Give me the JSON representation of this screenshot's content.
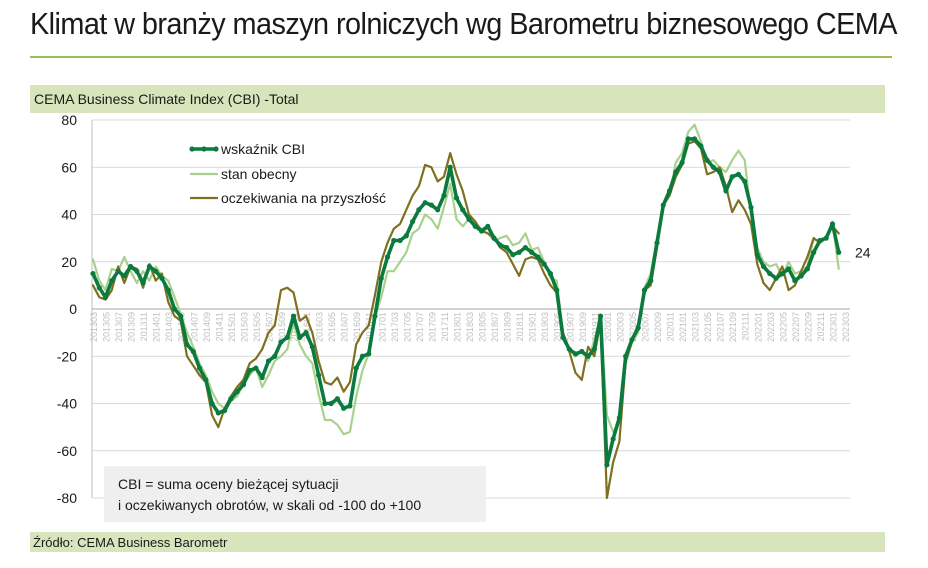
{
  "title": "Klimat w branży maszyn rolniczych wg Barometru biznesowego CEMA",
  "source": "Źródło: CEMA Business Barometr",
  "note": {
    "line1": "CBI = suma oceny bieżącej sytuacji",
    "line2": "i oczekiwanych obrotów, w skali od -100 do +100"
  },
  "colors": {
    "band": "#d8e4bc",
    "rule": "#9bbb59",
    "cbi": "#0b7a3e",
    "stan": "#a9d18e",
    "ocz": "#7f7020"
  },
  "chart_data": {
    "type": "line",
    "title": "CEMA Business Climate Index (CBI) -Total",
    "ylim": [
      -80,
      80
    ],
    "yticks": [
      80,
      60,
      40,
      20,
      0,
      -20,
      -40,
      -60,
      -80
    ],
    "grid": true,
    "legend_position": "top-left",
    "end_label": "24",
    "x": [
      "201303",
      "201304",
      "201305",
      "201306",
      "201307",
      "201308",
      "201309",
      "201310",
      "201311",
      "201312",
      "201401",
      "201402",
      "201403",
      "201404",
      "201405",
      "201406",
      "201407",
      "201408",
      "201409",
      "201410",
      "201411",
      "201412",
      "201501",
      "201502",
      "201503",
      "201504",
      "201505",
      "201506",
      "201507",
      "201508",
      "201509",
      "201510",
      "201511",
      "201512",
      "201601",
      "201602",
      "201603",
      "201604",
      "201605",
      "201606",
      "201607",
      "201608",
      "201609",
      "201610",
      "201611",
      "201612",
      "201701",
      "201702",
      "201703",
      "201704",
      "201705",
      "201706",
      "201707",
      "201708",
      "201709",
      "201710",
      "201711",
      "201712",
      "201801",
      "201802",
      "201803",
      "201804",
      "201805",
      "201806",
      "201807",
      "201808",
      "201809",
      "201810",
      "201811",
      "201812",
      "201901",
      "201902",
      "201903",
      "201904",
      "201905",
      "201906",
      "201907",
      "201908",
      "201909",
      "201910",
      "201911",
      "201912",
      "202001",
      "202002",
      "202003",
      "202004",
      "202005",
      "202006",
      "202007",
      "202008",
      "202009",
      "202010",
      "202011",
      "202012",
      "202101",
      "202102",
      "202103",
      "202104",
      "202105",
      "202106",
      "202107",
      "202108",
      "202109",
      "202110",
      "202111",
      "202112",
      "202201",
      "202202",
      "202203",
      "202204",
      "202205",
      "202206",
      "202207",
      "202208",
      "202209",
      "202210",
      "202211",
      "202212",
      "202301",
      "202302",
      "202303"
    ],
    "xtick_labels": [
      "201303",
      "201305",
      "201307",
      "201309",
      "201311",
      "201401",
      "201403",
      "201405",
      "201407",
      "201409",
      "201411",
      "201501",
      "201503",
      "201505",
      "201507",
      "201509",
      "201511",
      "201601",
      "201603",
      "201605",
      "201607",
      "201609",
      "201611",
      "201701",
      "201703",
      "201705",
      "201707",
      "201709",
      "201711",
      "201801",
      "201803",
      "201805",
      "201807",
      "201809",
      "201811",
      "201901",
      "201903",
      "201905",
      "201907",
      "201909",
      "201911",
      "202001",
      "202003",
      "202005",
      "202007",
      "202009",
      "202011",
      "202101",
      "202103",
      "202105",
      "202107",
      "202109",
      "202111",
      "202201",
      "202203",
      "202205",
      "202207",
      "202209",
      "202211",
      "202301",
      "202303"
    ],
    "series": [
      {
        "name": "wskaźnik CBI",
        "key": "cbi",
        "marker": true,
        "values": [
          15,
          9,
          5,
          12,
          16,
          14,
          18,
          16,
          11,
          18,
          16,
          13,
          8,
          0,
          -3,
          -15,
          -18,
          -25,
          -30,
          -40,
          -44,
          -43,
          -38,
          -35,
          -32,
          -26,
          -25,
          -29,
          -22,
          -20,
          -14,
          -12,
          -3,
          -12,
          -10,
          -16,
          -28,
          -40,
          -40,
          -38,
          -42,
          -41,
          -25,
          -20,
          -19,
          -3,
          13,
          22,
          29,
          29,
          31,
          37,
          42,
          45,
          44,
          42,
          48,
          60,
          47,
          42,
          38,
          35,
          33,
          35,
          30,
          27,
          26,
          23,
          24,
          26,
          24,
          22,
          19,
          15,
          8,
          -12,
          -17,
          -19,
          -18,
          -20,
          -17,
          -3,
          -66,
          -55,
          -46,
          -20,
          -13,
          -8,
          8,
          12,
          28,
          44,
          50,
          58,
          62,
          72,
          72,
          69,
          63,
          60,
          58,
          50,
          56,
          57,
          54,
          43,
          23,
          18,
          15,
          13,
          15,
          17,
          12,
          14,
          17,
          24,
          29,
          30,
          36,
          24,
          null
        ]
      },
      {
        "name": "stan obecny",
        "key": "stan",
        "marker": false,
        "values": [
          21,
          12,
          8,
          17,
          16,
          22,
          16,
          11,
          16,
          12,
          18,
          14,
          12,
          5,
          -2,
          -10,
          -16,
          -23,
          -28,
          -35,
          -40,
          -42,
          -39,
          -37,
          -32,
          -28,
          -25,
          -33,
          -28,
          -22,
          -20,
          -17,
          -6,
          -15,
          -20,
          -23,
          -36,
          -47,
          -47,
          -49,
          -53,
          -52,
          -37,
          -26,
          -19,
          -3,
          5,
          16,
          16,
          20,
          24,
          32,
          34,
          40,
          38,
          34,
          43,
          53,
          38,
          35,
          38,
          36,
          34,
          32,
          29,
          30,
          31,
          27,
          28,
          32,
          25,
          26,
          20,
          13,
          12,
          -10,
          -17,
          -20,
          -18,
          -22,
          -13,
          -3,
          -45,
          -52,
          -48,
          -23,
          -14,
          -10,
          9,
          15,
          30,
          44,
          48,
          62,
          66,
          75,
          78,
          71,
          62,
          63,
          60,
          58,
          63,
          67,
          63,
          40,
          26,
          20,
          18,
          19,
          14,
          20,
          15,
          16,
          18,
          30,
          28,
          30,
          37,
          17,
          null
        ]
      },
      {
        "name": "oczekiwania na przyszłość",
        "key": "ocz",
        "marker": false,
        "values": [
          10,
          5,
          4,
          8,
          18,
          11,
          18,
          17,
          9,
          19,
          12,
          15,
          3,
          -3,
          -5,
          -20,
          -24,
          -28,
          -31,
          -45,
          -50,
          -42,
          -37,
          -33,
          -30,
          -23,
          -21,
          -17,
          -10,
          -7,
          8,
          9,
          7,
          -5,
          -3,
          -10,
          -22,
          -31,
          -32,
          -29,
          -35,
          -31,
          -15,
          -10,
          -7,
          6,
          20,
          28,
          34,
          36,
          42,
          48,
          52,
          61,
          60,
          54,
          56,
          66,
          57,
          50,
          40,
          37,
          33,
          32,
          30,
          26,
          24,
          19,
          14,
          21,
          22,
          21,
          15,
          10,
          7,
          -10,
          -18,
          -27,
          -30,
          -16,
          -20,
          -5,
          -80,
          -65,
          -56,
          -22,
          -14,
          -6,
          8,
          10,
          26,
          44,
          48,
          56,
          61,
          70,
          71,
          68,
          57,
          58,
          60,
          52,
          41,
          46,
          42,
          36,
          19,
          11,
          8,
          13,
          18,
          8,
          10,
          16,
          22,
          30,
          28,
          30,
          35,
          32,
          null
        ]
      }
    ]
  }
}
